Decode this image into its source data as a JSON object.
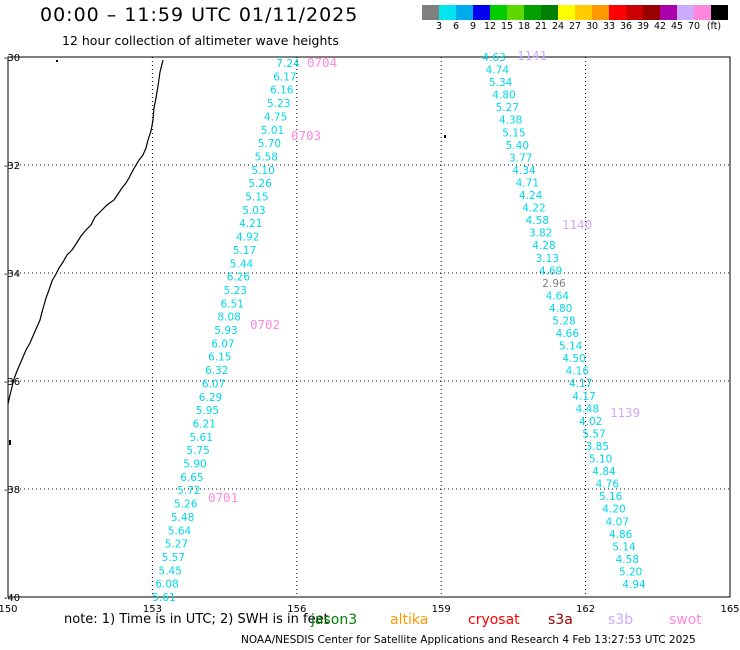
{
  "title": "00:00 – 11:59 UTC 01/11/2025",
  "subtitle": "12 hour collection of altimeter wave heights",
  "colorbar": {
    "colors": [
      "#7f7f7f",
      "#00e5ee",
      "#00aaee",
      "#0000ee",
      "#00cc00",
      "#5fd700",
      "#00a000",
      "#008000",
      "#ffff00",
      "#ffcc00",
      "#ff9900",
      "#ff0000",
      "#cc0000",
      "#990000",
      "#aa00aa",
      "#ccaaff",
      "#ff88dd",
      "#000000"
    ],
    "labels": [
      "3",
      "6",
      "9",
      "12",
      "15",
      "18",
      "21",
      "24",
      "27",
      "30",
      "33",
      "36",
      "39",
      "42",
      "45",
      "70",
      "(ft)"
    ]
  },
  "map": {
    "lon_ticks": [
      "150",
      "153",
      "156",
      "159",
      "162",
      "165"
    ],
    "lat_ticks": [
      "-30",
      "-32",
      "-34",
      "-36",
      "-38",
      "-40"
    ],
    "coast_color": "#000000",
    "grid": "dotted"
  },
  "tracks": {
    "track_1": {
      "color": "#00d8e8",
      "values": [
        "7.24",
        "6.17",
        "6.16",
        "5.23",
        "4.75",
        "5.01",
        "5.70",
        "5.58",
        "5.10",
        "5.26",
        "5.15",
        "5.03",
        "4.21",
        "4.92",
        "5.17",
        "5.44",
        "6.26",
        "5.23",
        "6.51",
        "8.08",
        "5.93",
        "6.07",
        "6.15",
        "6.32",
        "6.07",
        "6.29",
        "5.95",
        "6.21",
        "5.61",
        "5.75",
        "5.90",
        "6.65",
        "5.72",
        "5.26",
        "5.48",
        "5.64",
        "5.27",
        "5.57",
        "5.45",
        "6.08",
        "5.61"
      ]
    },
    "track_2": {
      "values": [
        {
          "v": "4.63",
          "c": "#00d8e8"
        },
        {
          "v": "4.74",
          "c": "#00d8e8"
        },
        {
          "v": "5.34",
          "c": "#00d8e8"
        },
        {
          "v": "4.80",
          "c": "#00d8e8"
        },
        {
          "v": "5.27",
          "c": "#00d8e8"
        },
        {
          "v": "4.38",
          "c": "#00d8e8"
        },
        {
          "v": "5.15",
          "c": "#00d8e8"
        },
        {
          "v": "5.40",
          "c": "#00d8e8"
        },
        {
          "v": "3.77",
          "c": "#00d8e8"
        },
        {
          "v": "4.34",
          "c": "#00d8e8"
        },
        {
          "v": "4.71",
          "c": "#00d8e8"
        },
        {
          "v": "4.24",
          "c": "#00d8e8"
        },
        {
          "v": "4.22",
          "c": "#00d8e8"
        },
        {
          "v": "4.58",
          "c": "#00d8e8"
        },
        {
          "v": "3.82",
          "c": "#00d8e8"
        },
        {
          "v": "4.28",
          "c": "#00d8e8"
        },
        {
          "v": "3.13",
          "c": "#00d8e8"
        },
        {
          "v": "4.69",
          "c": "#00d8e8"
        },
        {
          "v": "2.96",
          "c": "#7f7f7f"
        },
        {
          "v": "4.64",
          "c": "#00d8e8"
        },
        {
          "v": "4.80",
          "c": "#00d8e8"
        },
        {
          "v": "5.28",
          "c": "#00d8e8"
        },
        {
          "v": "4.66",
          "c": "#00d8e8"
        },
        {
          "v": "5.14",
          "c": "#00d8e8"
        },
        {
          "v": "4.50",
          "c": "#00d8e8"
        },
        {
          "v": "4.16",
          "c": "#00d8e8"
        },
        {
          "v": "4.17",
          "c": "#00d8e8"
        },
        {
          "v": "4.17",
          "c": "#00d8e8"
        },
        {
          "v": "4.48",
          "c": "#00d8e8"
        },
        {
          "v": "4.02",
          "c": "#00d8e8"
        },
        {
          "v": "5.57",
          "c": "#00d8e8"
        },
        {
          "v": "3.85",
          "c": "#00d8e8"
        },
        {
          "v": "5.10",
          "c": "#00d8e8"
        },
        {
          "v": "4.84",
          "c": "#00d8e8"
        },
        {
          "v": "4.76",
          "c": "#00d8e8"
        },
        {
          "v": "5.16",
          "c": "#00d8e8"
        },
        {
          "v": "4.20",
          "c": "#00d8e8"
        },
        {
          "v": "4.07",
          "c": "#00d8e8"
        },
        {
          "v": "4.86",
          "c": "#00d8e8"
        },
        {
          "v": "5.14",
          "c": "#00d8e8"
        },
        {
          "v": "4.58",
          "c": "#00d8e8"
        },
        {
          "v": "5.20",
          "c": "#00d8e8"
        },
        {
          "v": "4.94",
          "c": "#00d8e8"
        }
      ]
    }
  },
  "time_labels": [
    {
      "text": "0704",
      "color": "#ff88dd"
    },
    {
      "text": "0703",
      "color": "#ff88dd"
    },
    {
      "text": "0702",
      "color": "#ff88dd"
    },
    {
      "text": "0701",
      "color": "#ff88dd"
    },
    {
      "text": "1141",
      "color": "#ccaaff"
    },
    {
      "text": "1140",
      "color": "#ccaaff"
    },
    {
      "text": "1139",
      "color": "#ccaaff"
    }
  ],
  "note": "note:  1) Time is in UTC; 2) SWH is in feet",
  "satellites": [
    {
      "name": "jason3",
      "color": "#008000"
    },
    {
      "name": "altika",
      "color": "#ff9900"
    },
    {
      "name": "cryosat",
      "color": "#ff0000"
    },
    {
      "name": "s3a",
      "color": "#990000"
    },
    {
      "name": "s3b",
      "color": "#ccaaff"
    },
    {
      "name": "swot",
      "color": "#ff88dd"
    }
  ],
  "footer": "NOAA/NESDIS Center for Satellite Applications and Research     4 Feb 13:27:53 UTC 2025"
}
